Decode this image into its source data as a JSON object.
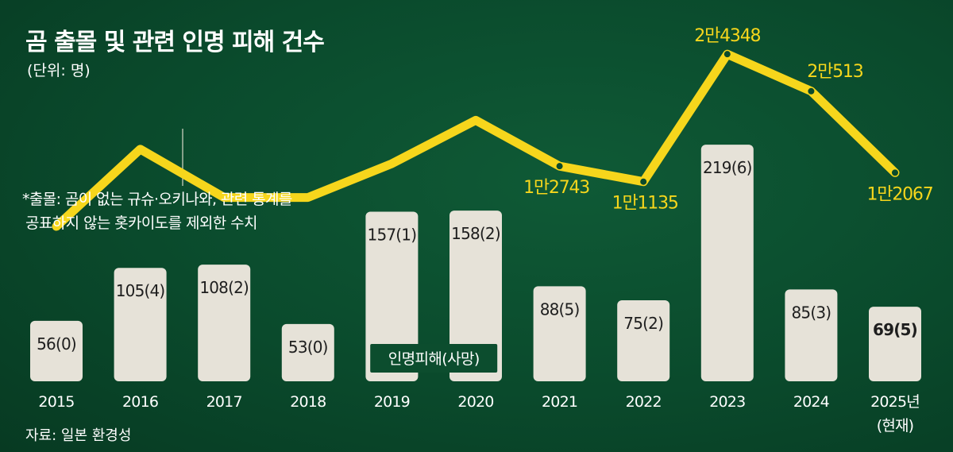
{
  "title": "곰 출몰 및 관련 인명 피해 건수",
  "unit": "(단위: 명)",
  "note": {
    "line1": "*출몰: 곰이 없는 규슈·오키나와, 관련 통계를",
    "line2": "공표하지 않는 홋카이도를 제외한 수치"
  },
  "source": "자료: 일본 환경성",
  "legend_label": "인명피해(사망)",
  "colors": {
    "line": "#f6d61c",
    "bar": "#e6e2d8",
    "background": "#0a4a2c"
  },
  "chart_data": {
    "type": "bar+line",
    "categories": [
      "2015",
      "2016",
      "2017",
      "2018",
      "2019",
      "2020",
      "2021",
      "2022",
      "2023",
      "2024",
      "2025년"
    ],
    "category_sublabels": [
      "",
      "",
      "",
      "",
      "",
      "",
      "",
      "",
      "",
      "",
      "(현재)"
    ],
    "bars": {
      "name": "인명피해(사망)",
      "values": [
        56,
        105,
        108,
        53,
        157,
        158,
        88,
        75,
        219,
        85,
        69
      ],
      "deaths": [
        0,
        4,
        2,
        0,
        1,
        2,
        5,
        2,
        6,
        3,
        5
      ],
      "labels": [
        "56(0)",
        "105(4)",
        "108(2)",
        "53(0)",
        "157(1)",
        "158(2)",
        "88(5)",
        "75(2)",
        "219(6)",
        "85(3)",
        "69(5)"
      ]
    },
    "line": {
      "name": "출몰",
      "values": [
        6500,
        14500,
        9500,
        9500,
        13000,
        17500,
        12743,
        11135,
        24348,
        20513,
        12067
      ],
      "labels": [
        "",
        "",
        "",
        "",
        "",
        "",
        "1만2743",
        "1만1135",
        "2만4348",
        "2만513",
        "1만2067"
      ]
    },
    "highlight_last": true
  }
}
